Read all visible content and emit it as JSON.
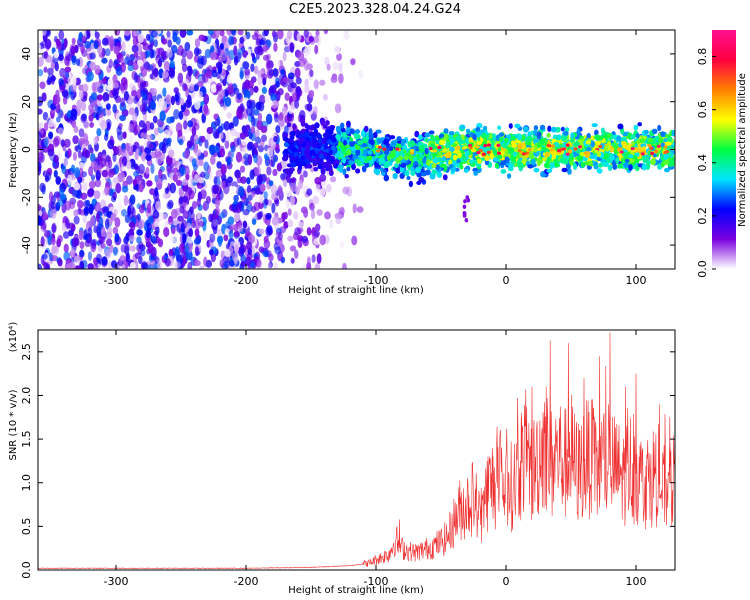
{
  "title": "C2E5.2023.328.04.24.G24",
  "chart_data": [
    {
      "type": "heatmap",
      "xlabel": "Height of straight line (km)",
      "ylabel": "Frequency (Hz)",
      "xlim": [
        -360,
        130
      ],
      "ylim": [
        -50,
        50
      ],
      "xticks": [
        -300,
        -200,
        -100,
        0,
        100
      ],
      "yticks": [
        -40,
        -20,
        0,
        20,
        40
      ],
      "xtick_labels": [
        "-300",
        "-200",
        "-100",
        "0",
        "100"
      ],
      "ytick_labels": [
        "-40",
        "-20",
        "0",
        "20",
        "40"
      ],
      "colorbar": {
        "label": "Normalized spectral amplitude",
        "range": [
          0,
          0.9
        ],
        "ticks": [
          0,
          0.2,
          0.4,
          0.6,
          0.8
        ],
        "tick_labels": [
          "0.0",
          "0.2",
          "0.4",
          "0.6",
          "0.8"
        ],
        "colors": [
          "#ffffff",
          "#7a00e0",
          "#0000ff",
          "#00e5ff",
          "#00ff40",
          "#ffff00",
          "#ff8000",
          "#ff0040",
          "#ff1090"
        ]
      },
      "features": [
        {
          "region": "noise",
          "x_range": [
            -360,
            -120
          ],
          "freq_range": [
            -50,
            50
          ],
          "amplitude": 0.05
        },
        {
          "region": "signal",
          "x_range": [
            -170,
            130
          ],
          "center_freq": 0,
          "width": 8,
          "amplitude": 0.3
        },
        {
          "region": "tail",
          "x": -30,
          "freq_range": [
            -30,
            -20
          ],
          "amplitude": 0.05
        }
      ]
    },
    {
      "type": "line",
      "xlabel": "Height of straight line (km)",
      "ylabel": "SNR (10 * v/v)",
      "scale_label": "(x10⁴)",
      "xlim": [
        -360,
        130
      ],
      "ylim": [
        0,
        2.75
      ],
      "xticks": [
        -300,
        -200,
        -100,
        0,
        100
      ],
      "yticks": [
        0,
        0.5,
        1.0,
        1.5,
        2.0,
        2.5
      ],
      "xtick_labels": [
        "-300",
        "-200",
        "-100",
        "0",
        "100"
      ],
      "ytick_labels": [
        "0.0",
        "0.5",
        "1.0",
        "1.5",
        "2.0",
        "2.5"
      ],
      "series": [
        {
          "color": "#ee3030",
          "x": [
            -360,
            -300,
            -200,
            -150,
            -120,
            -105,
            -100,
            -95,
            -90,
            -85,
            -80,
            -75,
            -70,
            -65,
            -60,
            -55,
            -50,
            -45,
            -40,
            -35,
            -30,
            -25,
            -20,
            -15,
            -10,
            -5,
            0,
            5,
            10,
            15,
            20,
            25,
            30,
            35,
            40,
            45,
            50,
            55,
            60,
            65,
            70,
            75,
            80,
            85,
            90,
            95,
            100,
            105,
            110,
            115,
            120,
            125,
            130
          ],
          "y": [
            0.02,
            0.02,
            0.02,
            0.03,
            0.05,
            0.08,
            0.12,
            0.15,
            0.18,
            0.35,
            0.25,
            0.22,
            0.2,
            0.22,
            0.25,
            0.28,
            0.32,
            0.38,
            0.55,
            0.7,
            0.75,
            0.85,
            0.6,
            0.9,
            1.0,
            0.9,
            1.0,
            0.95,
            1.15,
            1.35,
            1.1,
            1.3,
            1.5,
            1.2,
            1.35,
            1.2,
            1.35,
            1.1,
            1.25,
            1.3,
            1.1,
            1.25,
            1.2,
            1.15,
            1.05,
            1.2,
            1.1,
            1.0,
            1.05,
            1.1,
            0.9,
            1.0,
            1.0
          ],
          "peaks": [
            {
              "x": -82,
              "y": 0.58
            },
            {
              "x": -10,
              "y": 1.3
            },
            {
              "x": 12,
              "y": 1.8
            },
            {
              "x": 20,
              "y": 2.1
            },
            {
              "x": 34,
              "y": 2.63
            },
            {
              "x": 48,
              "y": 2.6
            },
            {
              "x": 60,
              "y": 2.2
            },
            {
              "x": 72,
              "y": 2.45
            },
            {
              "x": 80,
              "y": 2.72
            },
            {
              "x": 92,
              "y": 2.1
            },
            {
              "x": 100,
              "y": 2.25
            },
            {
              "x": 118,
              "y": 1.9
            },
            {
              "x": 126,
              "y": 1.75
            }
          ]
        }
      ]
    }
  ]
}
